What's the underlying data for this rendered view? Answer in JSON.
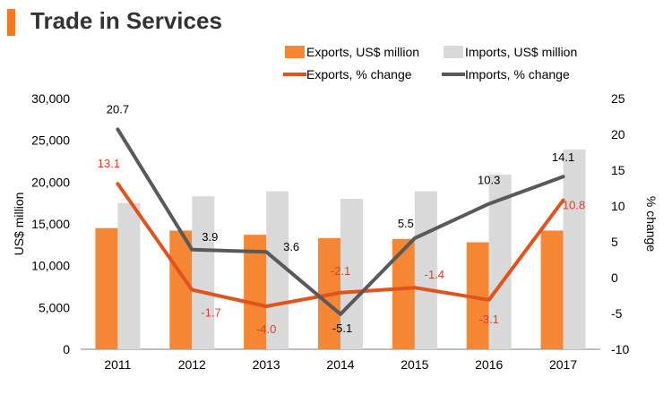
{
  "page": {
    "title": "Trade in Services"
  },
  "colors": {
    "accent": "#f47920",
    "exports_bar": "#f58634",
    "imports_bar": "#d9d9d9",
    "exports_line": "#e0531d",
    "imports_line": "#595959",
    "exports_label": "#d9412b",
    "imports_label": "#000000",
    "axis": "#7f7f7f"
  },
  "chart_data": {
    "type": "bar",
    "title": "Trade in Services",
    "categories": [
      "2011",
      "2012",
      "2013",
      "2014",
      "2015",
      "2016",
      "2017"
    ],
    "series": [
      {
        "name": "Exports, US$ million",
        "type": "bar",
        "axis": "left",
        "values": [
          14500,
          14200,
          13700,
          13300,
          13200,
          12800,
          14200
        ]
      },
      {
        "name": "Imports, US$ million",
        "type": "bar",
        "axis": "left",
        "values": [
          17500,
          18300,
          18900,
          18000,
          18900,
          20900,
          23900
        ]
      },
      {
        "name": "Exports, % change",
        "type": "line",
        "axis": "right",
        "values": [
          13.1,
          -1.7,
          -4.0,
          -2.1,
          -1.4,
          -3.1,
          10.8
        ],
        "labels": [
          "13.1",
          "-1.7",
          "-4.0",
          "-2.1",
          "-1.4",
          "-3.1",
          "10.8"
        ]
      },
      {
        "name": "Imports, % change",
        "type": "line",
        "axis": "right",
        "values": [
          20.7,
          3.9,
          3.6,
          -5.1,
          5.5,
          10.3,
          14.1
        ],
        "labels": [
          "20.7",
          "3.9",
          "3.6",
          "-5.1",
          "5.5",
          "10.3",
          "14.1"
        ]
      }
    ],
    "ylabel": "US$ million",
    "ylim": [
      0,
      30000
    ],
    "yticks": [
      "30,000",
      "25,000",
      "20,000",
      "15,000",
      "10,000",
      "5,000",
      "0"
    ],
    "y2label": "% change",
    "y2lim": [
      -10,
      25
    ],
    "y2ticks": [
      "25",
      "20",
      "15",
      "10",
      "5",
      "0",
      "-5",
      "-10"
    ],
    "legend_position": "top",
    "grid": false
  }
}
